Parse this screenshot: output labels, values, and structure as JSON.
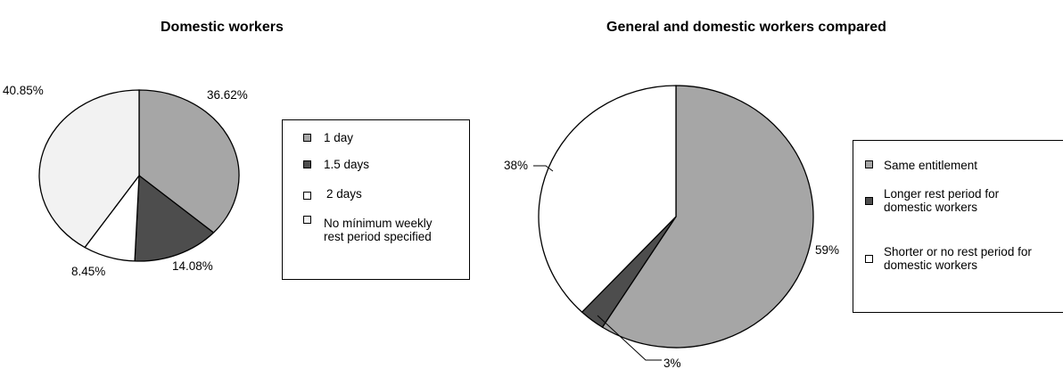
{
  "chart_data": [
    {
      "type": "pie",
      "title": "Domestic workers",
      "slices": [
        {
          "label": "1 day",
          "value": 36.62,
          "display": "36.62%",
          "color": "#a6a6a6"
        },
        {
          "label": "1.5 days",
          "value": 14.08,
          "display": "14.08%",
          "color": "#4d4d4d"
        },
        {
          "label": "2 days",
          "value": 8.45,
          "display": "8.45%",
          "color": "#ffffff"
        },
        {
          "label": "No mínimum weekly rest period specified",
          "value": 40.85,
          "display": "40.85%",
          "color": "#f2f2f2"
        }
      ],
      "legend": {
        "position": "right"
      }
    },
    {
      "type": "pie",
      "title": "General and domestic workers compared",
      "slices": [
        {
          "label": "Same entitlement",
          "value": 59,
          "display": "59%",
          "color": "#a6a6a6"
        },
        {
          "label": "Longer rest period for domestic workers",
          "value": 3,
          "display": "3%",
          "color": "#4d4d4d"
        },
        {
          "label": "Shorter or no rest period for domestic workers",
          "value": 38,
          "display": "38%",
          "color": "#ffffff"
        }
      ],
      "legend": {
        "position": "right"
      }
    }
  ]
}
